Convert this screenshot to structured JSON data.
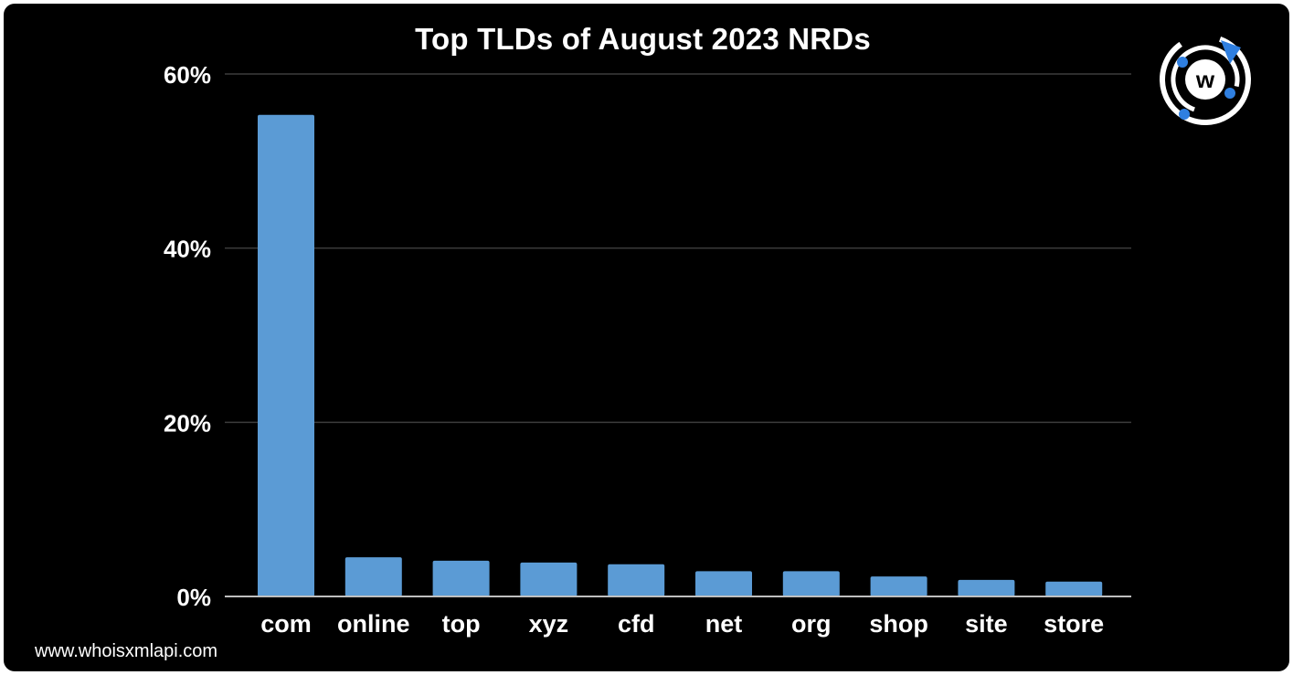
{
  "footer": {
    "url": "www.whoisxmlapi.com"
  },
  "logo": {
    "icon": "whoisxmlapi-logo-icon",
    "letter": "w",
    "accent_color": "#2f7fe0"
  },
  "chart_data": {
    "type": "bar",
    "title": "Top TLDs of August 2023 NRDs",
    "xlabel": "",
    "ylabel": "",
    "categories": [
      "com",
      "online",
      "top",
      "xyz",
      "cfd",
      "net",
      "org",
      "shop",
      "site",
      "store"
    ],
    "values": [
      55.3,
      4.5,
      4.1,
      3.9,
      3.7,
      2.9,
      2.9,
      2.3,
      1.9,
      1.7
    ],
    "ylim": [
      0,
      60
    ],
    "yticks": [
      0,
      20,
      40,
      60
    ],
    "ytick_labels": [
      "0%",
      "20%",
      "40%",
      "60%"
    ],
    "grid": true,
    "legend": "none",
    "bar_color": "#5b9bd5",
    "background": "#000000"
  }
}
